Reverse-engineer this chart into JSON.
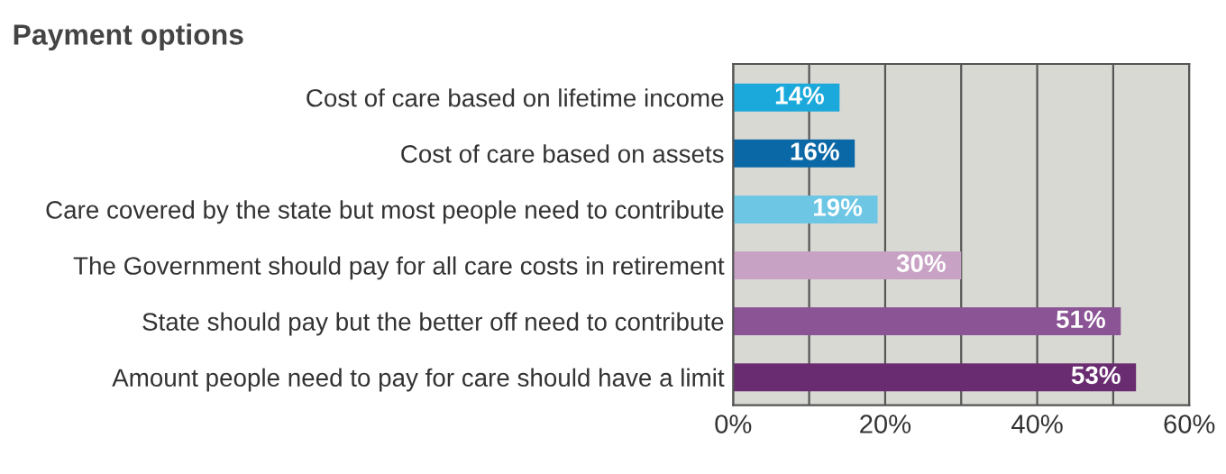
{
  "chart_data": {
    "type": "bar",
    "orientation": "horizontal",
    "title": "Payment options",
    "categories": [
      "Cost of care based on lifetime income",
      "Cost of care based on assets",
      "Care covered by the state but most people need to contribute",
      "The Government should pay for all care costs in retirement",
      "State should pay but the better off need to contribute",
      "Amount people need to pay for care should have a limit"
    ],
    "values": [
      14,
      16,
      19,
      30,
      51,
      53
    ],
    "colors": [
      "#1ba9db",
      "#0b68a6",
      "#6cc6e4",
      "#c7a2c5",
      "#8b5495",
      "#6a2c70"
    ],
    "value_labels": [
      "14%",
      "16%",
      "19%",
      "30%",
      "51%",
      "53%"
    ],
    "xlim": [
      0,
      60
    ],
    "xticks": [
      {
        "value": 0,
        "label": "0%"
      },
      {
        "value": 10,
        "label": null
      },
      {
        "value": 20,
        "label": "20%"
      },
      {
        "value": 30,
        "label": null
      },
      {
        "value": 40,
        "label": "40%"
      },
      {
        "value": 50,
        "label": null
      },
      {
        "value": 60,
        "label": "60%"
      }
    ],
    "grid": "x"
  }
}
